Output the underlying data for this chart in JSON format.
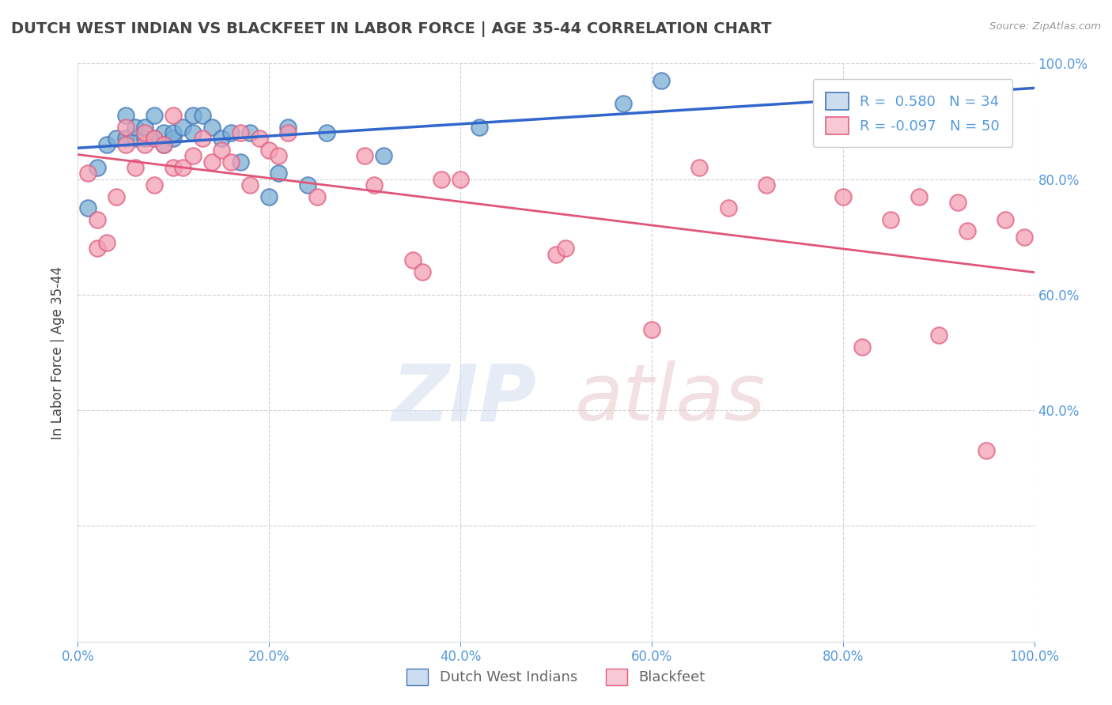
{
  "title": "DUTCH WEST INDIAN VS BLACKFEET IN LABOR FORCE | AGE 35-44 CORRELATION CHART",
  "source": "Source: ZipAtlas.com",
  "ylabel": "In Labor Force | Age 35-44",
  "xlim": [
    0.0,
    1.0
  ],
  "ylim": [
    0.0,
    1.0
  ],
  "xticks": [
    0.0,
    0.2,
    0.4,
    0.6,
    0.8,
    1.0
  ],
  "yticks": [
    0.0,
    0.2,
    0.4,
    0.6,
    0.8,
    1.0
  ],
  "xticklabels": [
    "0.0%",
    "20.0%",
    "40.0%",
    "60.0%",
    "80.0%",
    "100.0%"
  ],
  "yticklabels_right": [
    "",
    "40.0%",
    "60.0%",
    "80.0%",
    "100.0%"
  ],
  "legend_entries": [
    {
      "label": "Dutch West Indians",
      "R": 0.58,
      "N": 34
    },
    {
      "label": "Blackfeet",
      "R": -0.097,
      "N": 50
    }
  ],
  "blue_scatter_x": [
    0.01,
    0.02,
    0.03,
    0.04,
    0.05,
    0.05,
    0.06,
    0.06,
    0.07,
    0.07,
    0.08,
    0.08,
    0.09,
    0.09,
    0.1,
    0.1,
    0.11,
    0.12,
    0.12,
    0.13,
    0.14,
    0.15,
    0.16,
    0.17,
    0.18,
    0.2,
    0.21,
    0.22,
    0.24,
    0.26,
    0.32,
    0.42,
    0.57,
    0.61
  ],
  "blue_scatter_y": [
    0.75,
    0.82,
    0.86,
    0.87,
    0.87,
    0.91,
    0.87,
    0.89,
    0.87,
    0.89,
    0.87,
    0.91,
    0.86,
    0.88,
    0.87,
    0.88,
    0.89,
    0.88,
    0.91,
    0.91,
    0.89,
    0.87,
    0.88,
    0.83,
    0.88,
    0.77,
    0.81,
    0.89,
    0.79,
    0.88,
    0.84,
    0.89,
    0.93,
    0.97
  ],
  "pink_scatter_x": [
    0.01,
    0.02,
    0.02,
    0.03,
    0.04,
    0.05,
    0.05,
    0.06,
    0.07,
    0.07,
    0.08,
    0.08,
    0.09,
    0.1,
    0.1,
    0.11,
    0.12,
    0.13,
    0.14,
    0.15,
    0.16,
    0.17,
    0.18,
    0.19,
    0.2,
    0.21,
    0.22,
    0.25,
    0.3,
    0.31,
    0.35,
    0.36,
    0.38,
    0.4,
    0.5,
    0.51,
    0.6,
    0.65,
    0.68,
    0.72,
    0.8,
    0.82,
    0.85,
    0.88,
    0.9,
    0.92,
    0.93,
    0.95,
    0.97,
    0.99
  ],
  "pink_scatter_y": [
    0.81,
    0.73,
    0.68,
    0.69,
    0.77,
    0.86,
    0.89,
    0.82,
    0.86,
    0.88,
    0.79,
    0.87,
    0.86,
    0.91,
    0.82,
    0.82,
    0.84,
    0.87,
    0.83,
    0.85,
    0.83,
    0.88,
    0.79,
    0.87,
    0.85,
    0.84,
    0.88,
    0.77,
    0.84,
    0.79,
    0.66,
    0.64,
    0.8,
    0.8,
    0.67,
    0.68,
    0.54,
    0.82,
    0.75,
    0.79,
    0.77,
    0.51,
    0.73,
    0.77,
    0.53,
    0.76,
    0.71,
    0.33,
    0.73,
    0.7
  ],
  "blue_dot_color": "#7bafd4",
  "blue_edge_color": "#4477bb",
  "pink_dot_color": "#f4a0b5",
  "pink_edge_color": "#e06080",
  "blue_line_color": "#3366cc",
  "pink_line_color": "#e05578",
  "watermark_zip": "ZIP",
  "watermark_atlas": "atlas",
  "bg_color": "#ffffff",
  "grid_color": "#cccccc",
  "title_color": "#444444",
  "tick_color": "#5599dd",
  "legend_text_color": "#5599dd",
  "legend_r_prefix_blue": "R =  0.580",
  "legend_n_blue": "N = 34",
  "legend_r_prefix_pink": "R = -0.097",
  "legend_n_pink": "N = 50"
}
